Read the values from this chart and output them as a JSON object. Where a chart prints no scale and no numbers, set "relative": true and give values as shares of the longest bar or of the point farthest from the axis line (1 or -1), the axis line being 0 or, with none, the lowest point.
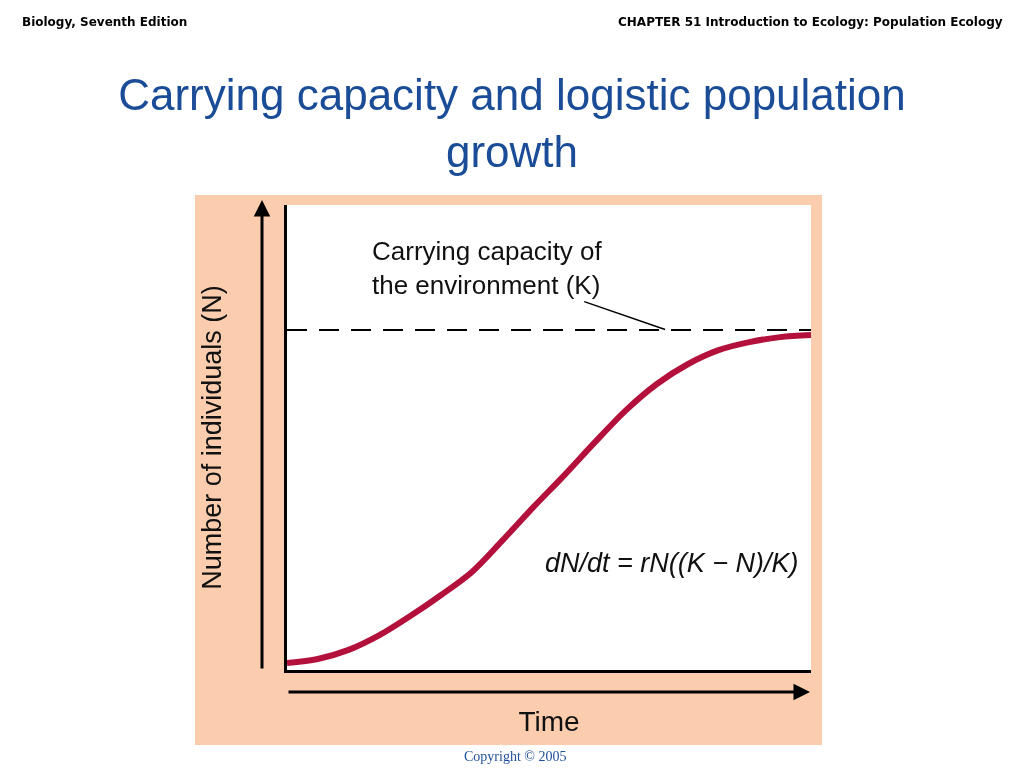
{
  "chart_data": {
    "type": "line",
    "relative": true,
    "title": "Carrying capacity and logistic population growth",
    "xlabel": "Time",
    "ylabel": "Number of individuals (N)",
    "categories": [
      null,
      null,
      null,
      null,
      null,
      null,
      null,
      null,
      null,
      null,
      null,
      null,
      null,
      null,
      null,
      null,
      null,
      null
    ],
    "series": [
      {
        "color": "#b3103c",
        "values": [
          0.021,
          0.033,
          0.06,
          0.104,
          0.161,
          0.224,
          0.293,
          0.388,
          0.487,
          0.582,
          0.681,
          0.776,
          0.854,
          0.913,
          0.955,
          0.979,
          0.994,
          1.0
        ]
      }
    ],
    "ref_lines": [
      {
        "axis": "y",
        "value": 1.015,
        "label": "Carrying capacity of\nthe environment (K)",
        "line_style": "dashed",
        "color": "#000000"
      }
    ],
    "annotations": [
      "Biology, Seventh Edition",
      "CHAPTER 51 Introduction to Ecology: Population Ecology",
      "dN/dt = rN((K − N)/K)",
      "Copyright © 2005"
    ]
  }
}
